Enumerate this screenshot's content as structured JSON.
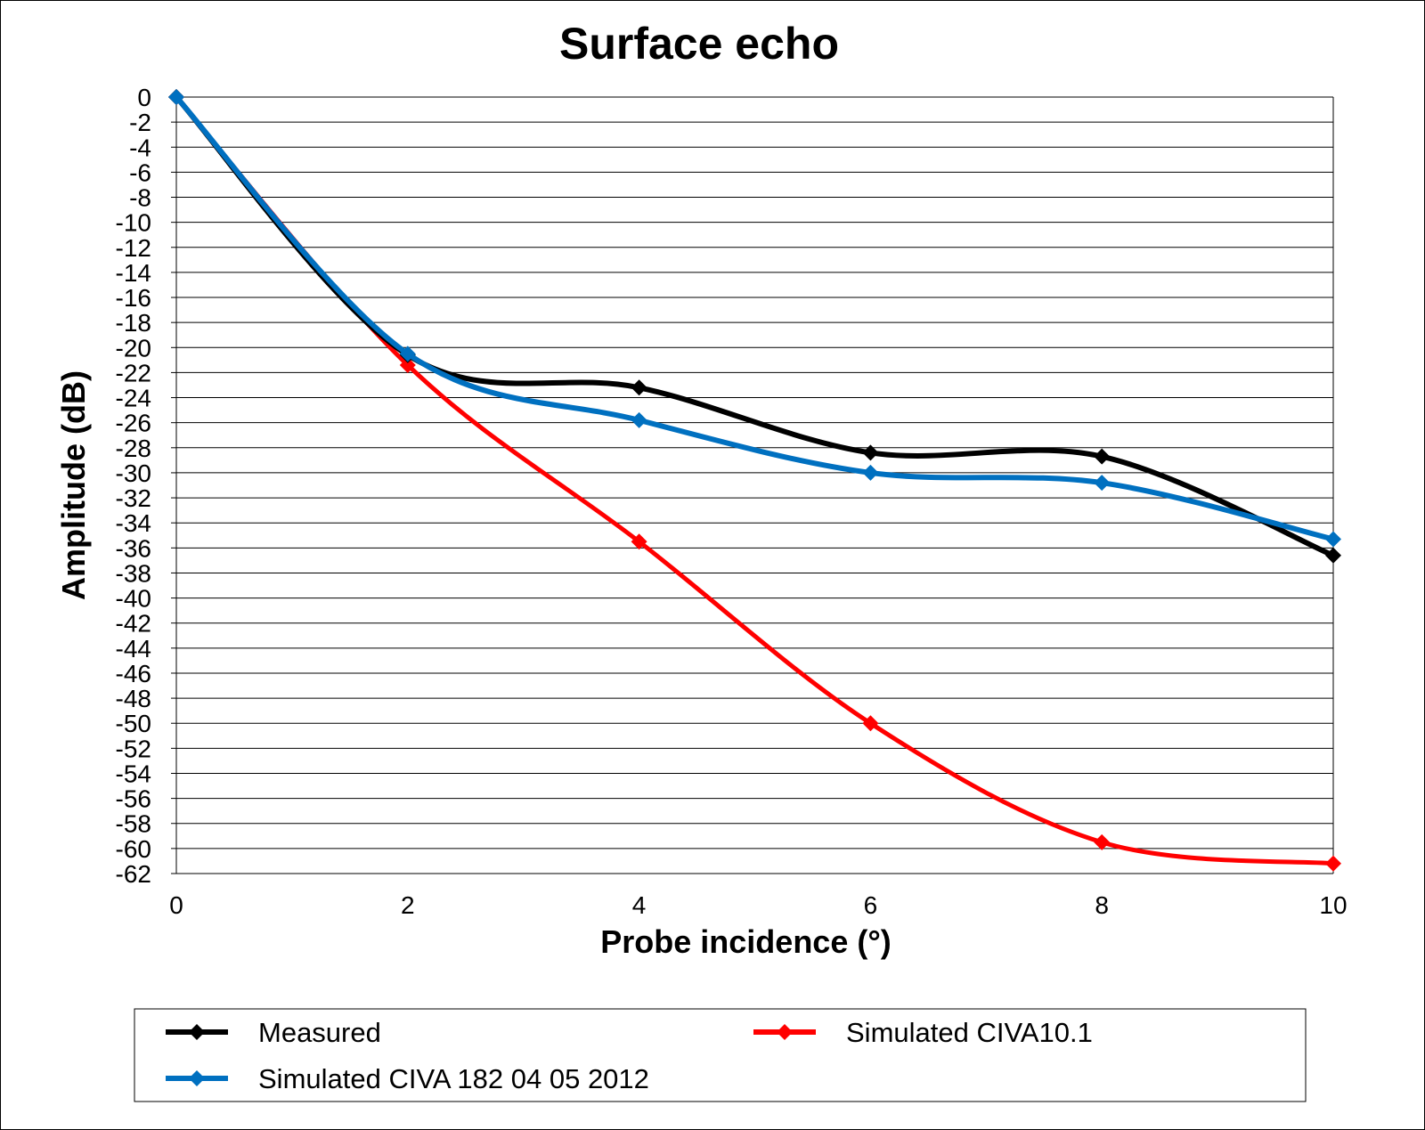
{
  "chart_data": {
    "type": "line",
    "title": "Surface echo",
    "xlabel": "Probe incidence (°)",
    "ylabel": "Amplitude (dB)",
    "xlim": [
      0,
      10
    ],
    "ylim": [
      -62,
      0
    ],
    "x_ticks": [
      0,
      2,
      4,
      6,
      8,
      10
    ],
    "y_ticks": [
      0,
      -2,
      -4,
      -6,
      -8,
      -10,
      -12,
      -14,
      -16,
      -18,
      -20,
      -22,
      -24,
      -26,
      -28,
      -30,
      -32,
      -34,
      -36,
      -38,
      -40,
      -42,
      -44,
      -46,
      -48,
      -50,
      -52,
      -54,
      -56,
      -58,
      -60,
      -62
    ],
    "grid": "horizontal",
    "legend_position": "bottom",
    "x": [
      0,
      2,
      4,
      6,
      8,
      10
    ],
    "series": [
      {
        "name": "Measured",
        "color": "#000000",
        "values": [
          0,
          -20.6,
          -23.2,
          -28.4,
          -28.7,
          -36.6
        ]
      },
      {
        "name": "Simulated CIVA10.1",
        "color": "#ff0000",
        "values": [
          0,
          -21.4,
          -35.5,
          -50.0,
          -59.5,
          -61.2
        ]
      },
      {
        "name": "Simulated CIVA 182 04 05 2012",
        "color": "#0070c0",
        "values": [
          0,
          -20.5,
          -25.8,
          -30.0,
          -30.8,
          -35.3
        ]
      }
    ]
  }
}
